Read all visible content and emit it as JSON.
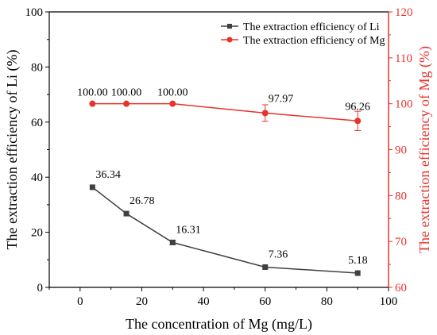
{
  "chart_data": {
    "type": "line",
    "xlabel": "The concentration of Mg (mg/L)",
    "ylabel": "The extraction efficiency of Li (%)",
    "ylabel_right": "The extraction efficiency of Mg (%)",
    "xlim": [
      -10,
      100
    ],
    "ylim": [
      0,
      100
    ],
    "ylim_right": [
      60,
      120
    ],
    "x_ticks": [
      0,
      20,
      40,
      60,
      80,
      100
    ],
    "y_ticks": [
      0,
      20,
      40,
      60,
      80,
      100
    ],
    "y_ticks_right": [
      60,
      70,
      80,
      90,
      100,
      110,
      120
    ],
    "grid": false,
    "legend_position": "top-right",
    "series": [
      {
        "name": "The extraction efficiency of Li",
        "axis": "left",
        "color": "#404040",
        "marker": "square",
        "x": [
          4,
          15,
          30,
          60,
          90
        ],
        "y": [
          36.34,
          26.78,
          16.31,
          7.36,
          5.18
        ],
        "labels": [
          "36.34",
          "26.78",
          "16.31",
          "7.36",
          "5.18"
        ],
        "error": [
          0,
          0,
          0.8,
          0,
          0
        ]
      },
      {
        "name": "The extraction efficiency of Mg",
        "axis": "right",
        "color": "#e8332d",
        "marker": "circle",
        "x": [
          4,
          15,
          30,
          60,
          90
        ],
        "y": [
          100.0,
          100.0,
          100.0,
          97.97,
          96.26
        ],
        "labels": [
          "100.00",
          "100.00",
          "100.00",
          "97.97",
          "96.26"
        ],
        "error": [
          0,
          0,
          0,
          1.8,
          2.1
        ]
      }
    ]
  }
}
